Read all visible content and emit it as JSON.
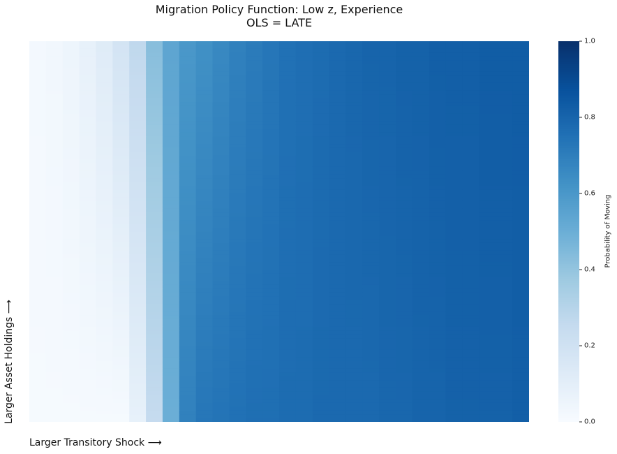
{
  "chart_data": {
    "type": "heatmap",
    "title": "Migration Policy Function: Low z, Experience",
    "subtitle": "OLS = LATE",
    "xlabel": "Larger Transitory Shock ⟶",
    "ylabel": "Larger Asset Holdings ⟶",
    "colorbar_label": "Probability of Moving",
    "colorbar_range": [
      0,
      1
    ],
    "colorbar_ticks": [
      "0.0",
      "0.2",
      "0.4",
      "0.6",
      "0.8",
      "1.0"
    ],
    "colormap": "Blues",
    "n_columns": 30,
    "n_rows": 100,
    "column_values_top": [
      0.02,
      0.03,
      0.05,
      0.08,
      0.12,
      0.18,
      0.27,
      0.43,
      0.54,
      0.6,
      0.63,
      0.66,
      0.69,
      0.71,
      0.73,
      0.75,
      0.76,
      0.77,
      0.78,
      0.79,
      0.8,
      0.8,
      0.81,
      0.81,
      0.82,
      0.82,
      0.82,
      0.83,
      0.83,
      0.83
    ],
    "column_values_bottom": [
      0.01,
      0.01,
      0.01,
      0.01,
      0.01,
      0.01,
      0.08,
      0.25,
      0.5,
      0.69,
      0.73,
      0.74,
      0.75,
      0.76,
      0.76,
      0.77,
      0.77,
      0.78,
      0.78,
      0.78,
      0.78,
      0.79,
      0.79,
      0.8,
      0.8,
      0.81,
      0.81,
      0.81,
      0.81,
      0.82
    ]
  }
}
